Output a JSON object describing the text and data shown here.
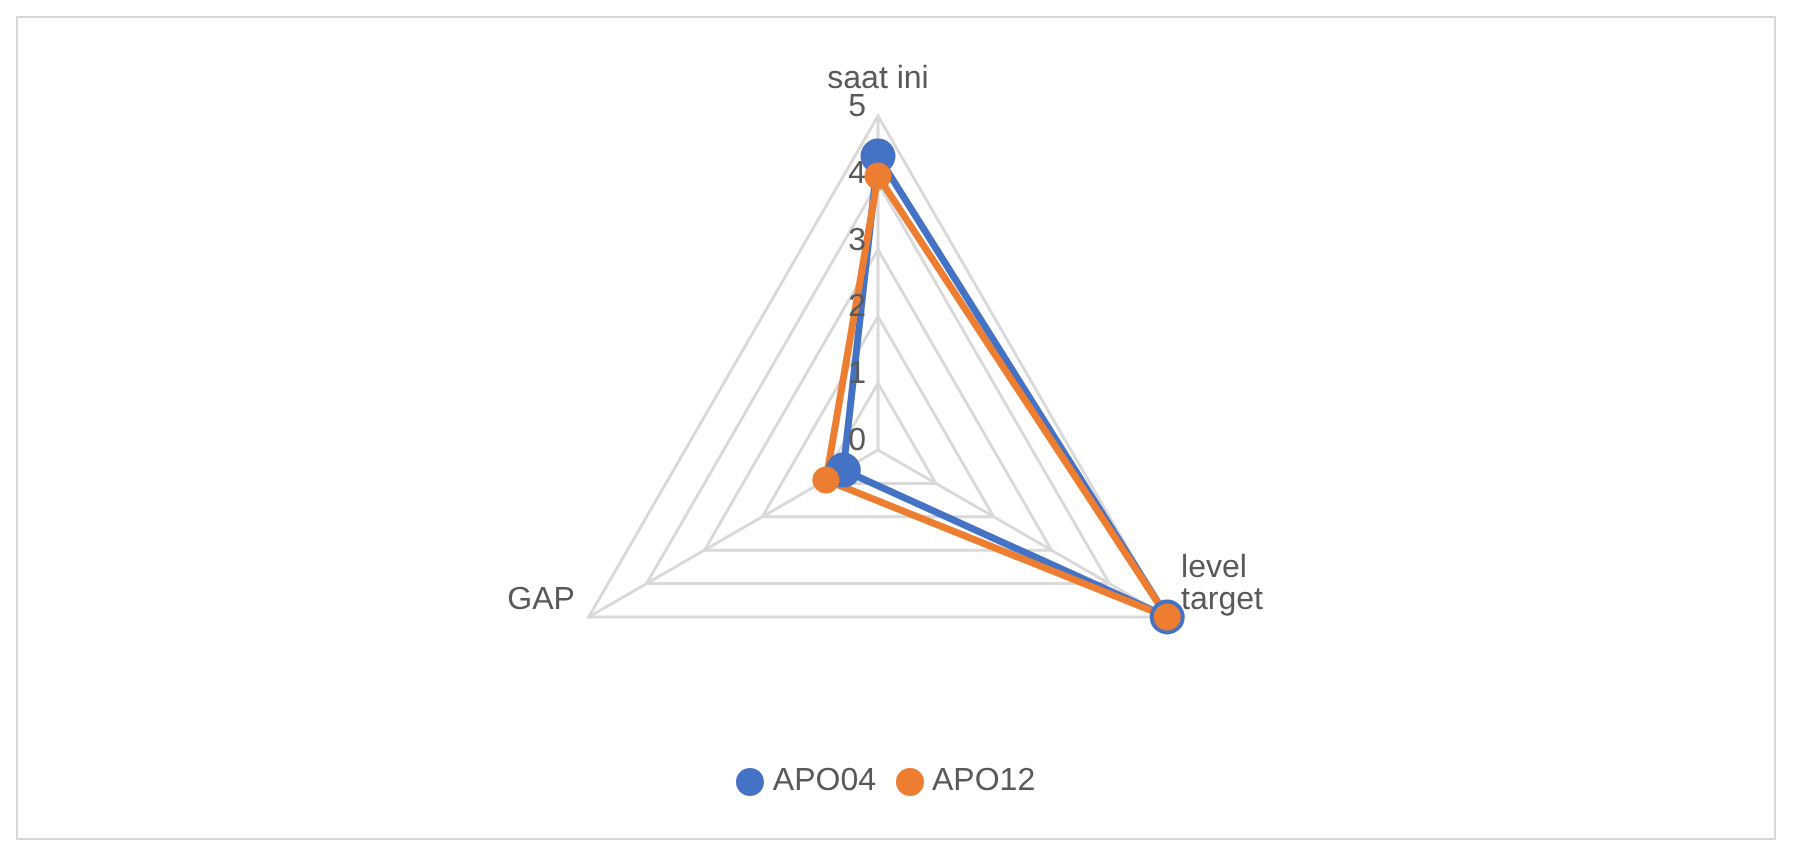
{
  "chart_data": {
    "type": "radar",
    "categories": [
      "saat ini",
      "level target",
      "GAP"
    ],
    "series": [
      {
        "name": "APO04",
        "color": "#4472c4",
        "values": [
          4.4,
          5,
          0.6
        ]
      },
      {
        "name": "APO12",
        "color": "#ed7d31",
        "values": [
          4.1,
          5,
          0.9
        ]
      }
    ],
    "ylim": [
      0,
      5
    ],
    "yticks": [
      0,
      1,
      2,
      3,
      4,
      5
    ],
    "grid": true,
    "legend": "bottom",
    "marker": "circle",
    "line_style": "solid"
  }
}
